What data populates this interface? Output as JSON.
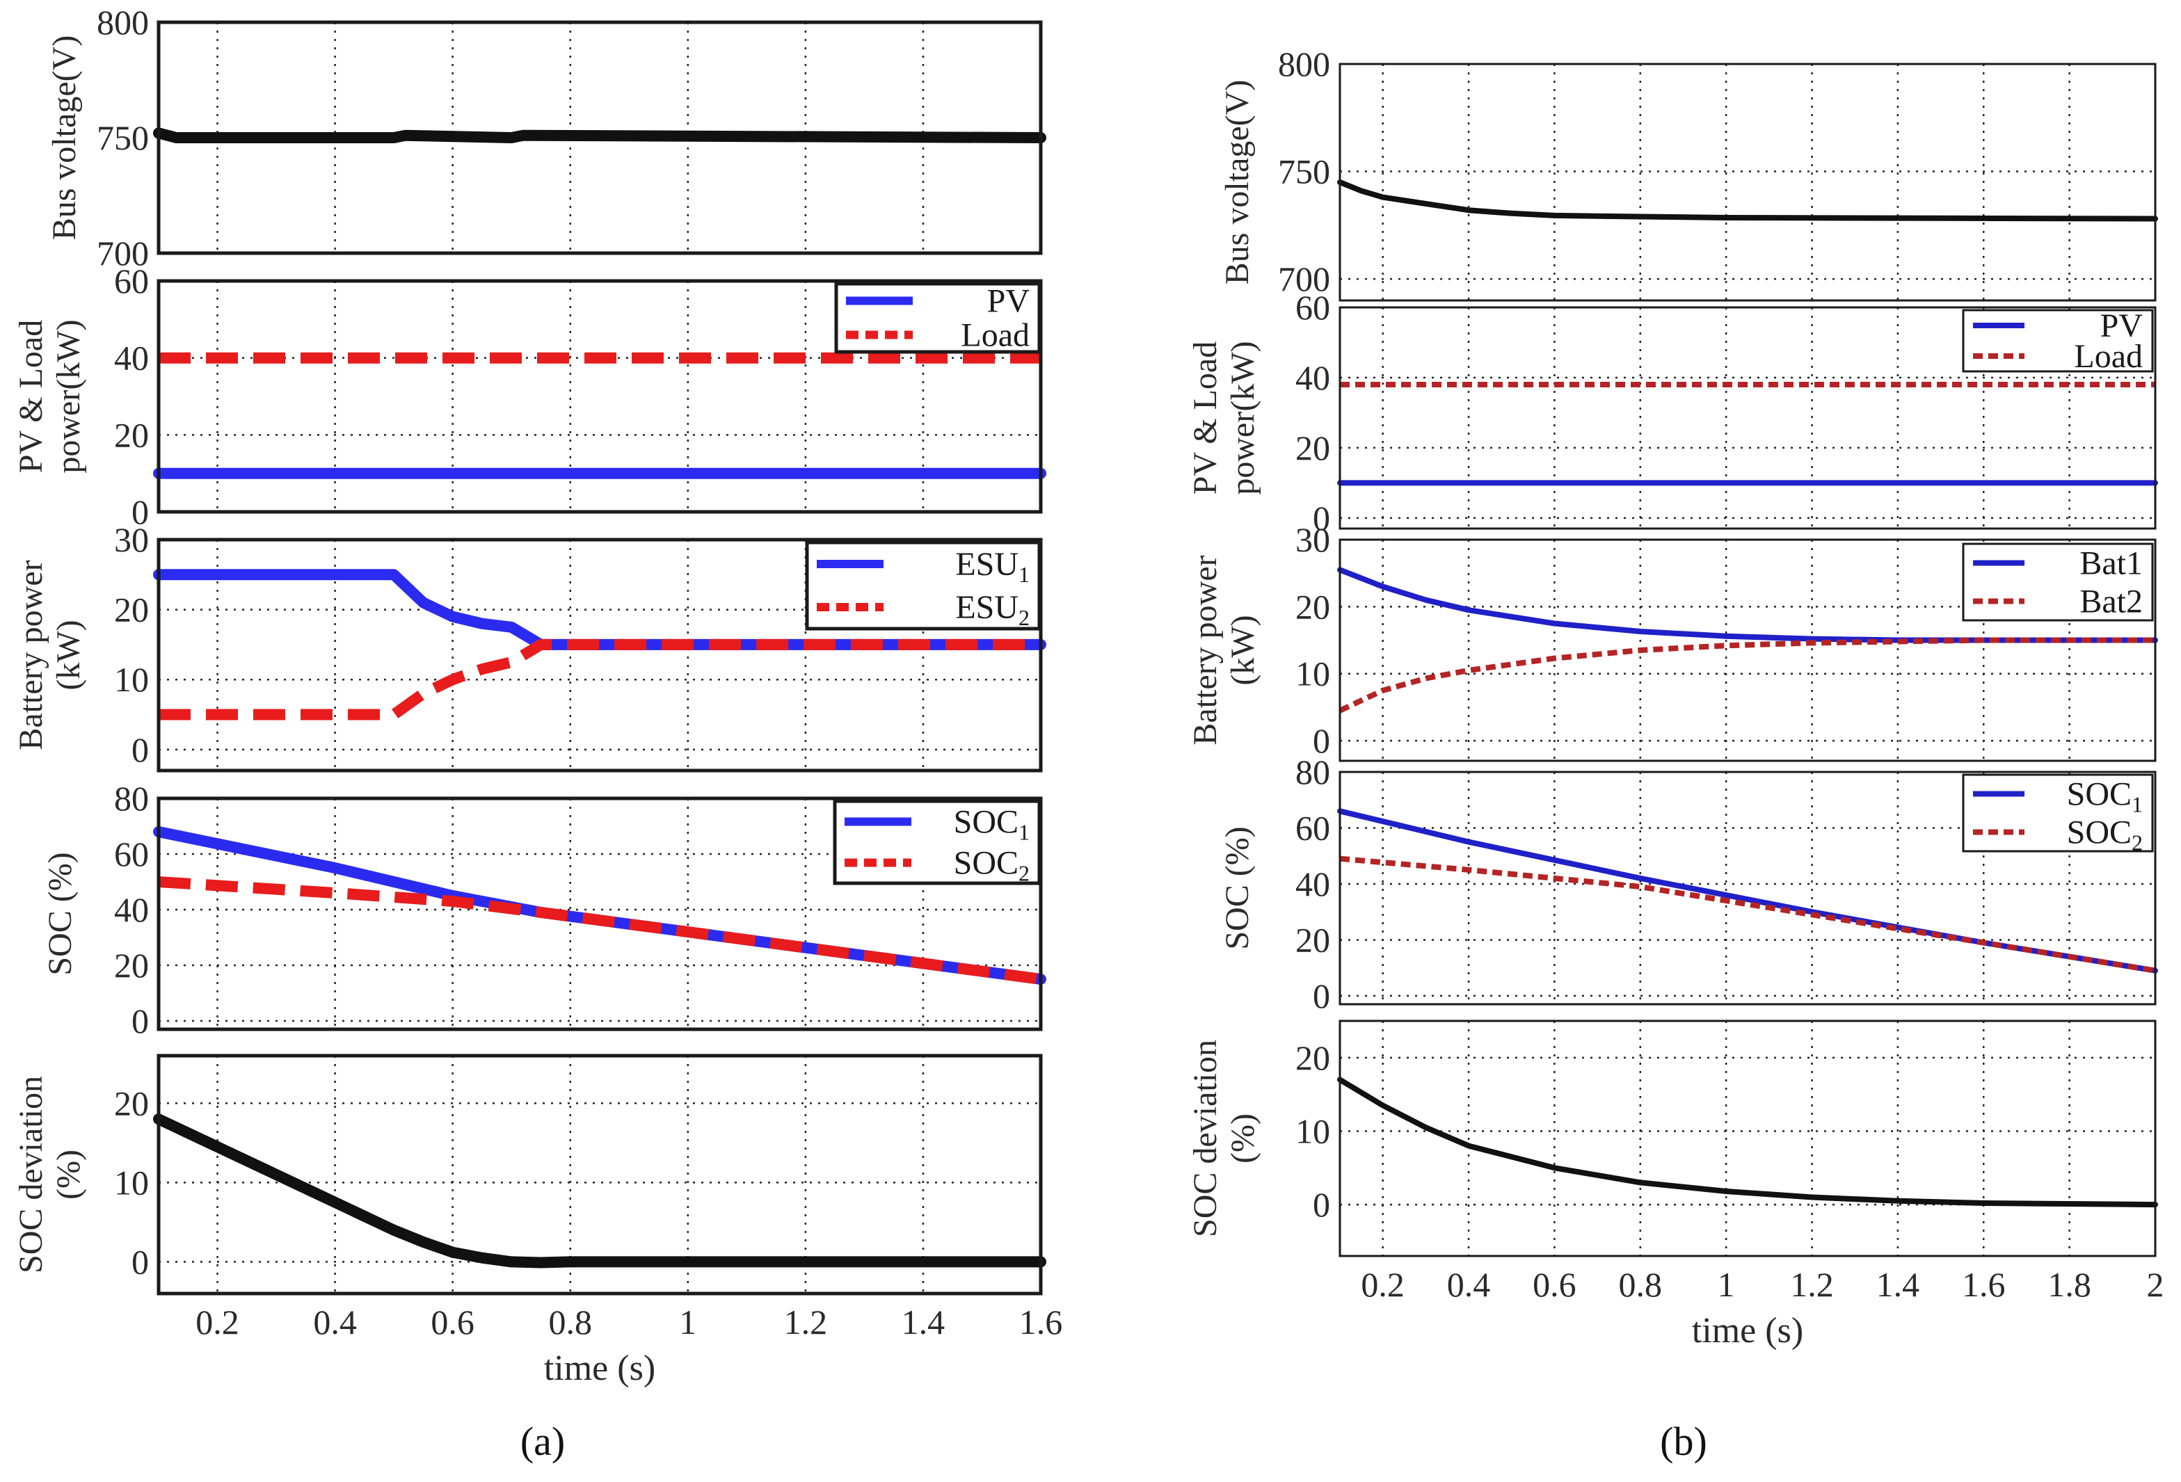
{
  "colors": {
    "blue": "#2b2bf0",
    "red": "#e81c1c",
    "black": "#111111",
    "blue_b": "#2020c8",
    "red_b": "#b52424"
  },
  "panel_labels": [
    "(a)",
    "(b)"
  ],
  "chart_data": [
    {
      "type": "line",
      "title": "Bus voltage — panel (a)",
      "ylabel": "Bus voltage(V)",
      "xlabel": "",
      "xlim": [
        0.1,
        1.6
      ],
      "ylim": [
        700,
        800
      ],
      "xticks": [
        0.2,
        0.4,
        0.6,
        0.8,
        1,
        1.2,
        1.4,
        1.6
      ],
      "yticks": [
        700,
        750,
        800
      ],
      "ytick_labels": [
        "700",
        "750",
        "800"
      ],
      "grid": true,
      "series": [
        {
          "name": "Bus voltage",
          "color": "#111111",
          "x": [
            0.1,
            0.13,
            0.2,
            0.5,
            0.52,
            0.7,
            0.72,
            1.6
          ],
          "y": [
            752,
            750,
            750,
            750,
            751,
            750,
            751,
            750
          ]
        }
      ]
    },
    {
      "type": "line",
      "title": "PV & Load power — panel (a)",
      "ylabel": [
        "PV & Load",
        "power(kW)"
      ],
      "xlabel": "",
      "xlim": [
        0.1,
        1.6
      ],
      "ylim": [
        0,
        60
      ],
      "xticks": [
        0.2,
        0.4,
        0.6,
        0.8,
        1,
        1.2,
        1.4,
        1.6
      ],
      "yticks": [
        0,
        20,
        40,
        60
      ],
      "ytick_labels": [
        "0",
        "20",
        "40",
        "60"
      ],
      "grid": true,
      "legend": {
        "position": "top-right"
      },
      "series": [
        {
          "name": "PV",
          "legend_text": "PV",
          "color": "#2b2bf0",
          "dash": "solid",
          "x": [
            0.1,
            1.6
          ],
          "y": [
            10,
            10
          ]
        },
        {
          "name": "Load",
          "legend_text": "Load",
          "color": "#e81c1c",
          "dash": "dashed",
          "x": [
            0.1,
            1.6
          ],
          "y": [
            40,
            40
          ]
        }
      ]
    },
    {
      "type": "line",
      "title": "Battery power — panel (a)",
      "ylabel": [
        "Battery power",
        "(kW)"
      ],
      "xlabel": "",
      "xlim": [
        0.1,
        1.6
      ],
      "ylim": [
        -3,
        30
      ],
      "xticks": [
        0.2,
        0.4,
        0.6,
        0.8,
        1,
        1.2,
        1.4,
        1.6
      ],
      "yticks": [
        0,
        10,
        20,
        30
      ],
      "ytick_labels": [
        "0",
        "10",
        "20",
        "30"
      ],
      "grid": true,
      "legend": {
        "position": "top-right"
      },
      "series": [
        {
          "name": "ESU1",
          "legend_text": "ESU",
          "legend_sub": "1",
          "color": "#2b2bf0",
          "dash": "solid",
          "x": [
            0.1,
            0.5,
            0.55,
            0.6,
            0.65,
            0.7,
            0.75,
            0.8,
            1.6
          ],
          "y": [
            25,
            25,
            21,
            19,
            18,
            17.5,
            15,
            15,
            15
          ]
        },
        {
          "name": "ESU2",
          "legend_text": "ESU",
          "legend_sub": "2",
          "color": "#e81c1c",
          "dash": "dashed",
          "x": [
            0.1,
            0.5,
            0.55,
            0.6,
            0.65,
            0.7,
            0.75,
            0.8,
            1.6
          ],
          "y": [
            5,
            5,
            8,
            10,
            11.5,
            12.5,
            15,
            15,
            15
          ]
        }
      ]
    },
    {
      "type": "line",
      "title": "SOC — panel (a)",
      "ylabel": "SOC (%)",
      "xlabel": "",
      "xlim": [
        0.1,
        1.6
      ],
      "ylim": [
        -3,
        80
      ],
      "xticks": [
        0.2,
        0.4,
        0.6,
        0.8,
        1,
        1.2,
        1.4,
        1.6
      ],
      "yticks": [
        0,
        20,
        40,
        60,
        80
      ],
      "ytick_labels": [
        "0",
        "20",
        "40",
        "60",
        "80"
      ],
      "grid": true,
      "legend": {
        "position": "top-right"
      },
      "series": [
        {
          "name": "SOC1",
          "legend_text": "SOC",
          "legend_sub": "1",
          "color": "#2b2bf0",
          "dash": "solid",
          "x": [
            0.1,
            0.4,
            0.6,
            0.75,
            1.0,
            1.6
          ],
          "y": [
            68,
            55,
            45,
            39,
            32,
            15
          ]
        },
        {
          "name": "SOC2",
          "legend_text": "SOC",
          "legend_sub": "2",
          "color": "#e81c1c",
          "dash": "dashed",
          "x": [
            0.1,
            0.4,
            0.6,
            0.75,
            1.0,
            1.6
          ],
          "y": [
            50,
            46,
            43,
            39,
            32,
            15
          ]
        }
      ]
    },
    {
      "type": "line",
      "title": "SOC deviation — panel (a)",
      "ylabel": [
        "SOC deviation",
        "(%)"
      ],
      "xlabel": "time (s)",
      "xlim": [
        0.1,
        1.6
      ],
      "ylim": [
        -4,
        26
      ],
      "xticks": [
        0.2,
        0.4,
        0.6,
        0.8,
        1,
        1.2,
        1.4,
        1.6
      ],
      "xtick_labels": [
        "0.2",
        "0.4",
        "0.6",
        "0.8",
        "1",
        "1.2",
        "1.4",
        "1.6"
      ],
      "yticks": [
        0,
        10,
        20
      ],
      "ytick_labels": [
        "0",
        "10",
        "20"
      ],
      "grid": true,
      "series": [
        {
          "name": "SOC deviation",
          "color": "#111111",
          "x": [
            0.1,
            0.3,
            0.5,
            0.55,
            0.6,
            0.65,
            0.7,
            0.75,
            0.8,
            1.6
          ],
          "y": [
            18,
            11,
            4,
            2.5,
            1.2,
            0.5,
            0,
            -0.1,
            0,
            0
          ]
        }
      ]
    },
    {
      "type": "line",
      "title": "Bus voltage — panel (b)",
      "ylabel": "Bus voltage(V)",
      "xlabel": "",
      "xlim": [
        0.1,
        2.0
      ],
      "ylim": [
        690,
        800
      ],
      "xticks": [
        0.2,
        0.4,
        0.6,
        0.8,
        1,
        1.2,
        1.4,
        1.6,
        1.8,
        2
      ],
      "yticks": [
        700,
        750,
        800
      ],
      "ytick_labels": [
        "700",
        "750",
        "800"
      ],
      "grid": true,
      "series": [
        {
          "name": "Bus voltage",
          "color": "#111111",
          "x": [
            0.1,
            0.15,
            0.2,
            0.3,
            0.4,
            0.5,
            0.6,
            0.8,
            1.0,
            2.0
          ],
          "y": [
            745,
            741,
            738,
            735,
            732,
            730.5,
            729.5,
            729,
            728.5,
            728
          ]
        }
      ]
    },
    {
      "type": "line",
      "title": "PV & Load power — panel (b)",
      "ylabel": [
        "PV & Load",
        "power(kW)"
      ],
      "xlabel": "",
      "xlim": [
        0.1,
        2.0
      ],
      "ylim": [
        -3,
        60
      ],
      "xticks": [
        0.2,
        0.4,
        0.6,
        0.8,
        1,
        1.2,
        1.4,
        1.6,
        1.8,
        2
      ],
      "yticks": [
        0,
        20,
        40,
        60
      ],
      "ytick_labels": [
        "0",
        "20",
        "40",
        "60"
      ],
      "grid": true,
      "legend": {
        "position": "top-right"
      },
      "series": [
        {
          "name": "PV",
          "legend_text": "PV",
          "color": "#2020c8",
          "dash": "solid",
          "x": [
            0.1,
            2.0
          ],
          "y": [
            10,
            10
          ]
        },
        {
          "name": "Load",
          "legend_text": "Load",
          "color": "#b52424",
          "dash": "dashed",
          "x": [
            0.1,
            2.0
          ],
          "y": [
            38,
            38
          ]
        }
      ]
    },
    {
      "type": "line",
      "title": "Battery power — panel (b)",
      "ylabel": [
        "Battery power",
        "(kW)"
      ],
      "xlabel": "",
      "xlim": [
        0.1,
        2.0
      ],
      "ylim": [
        -3,
        30
      ],
      "xticks": [
        0.2,
        0.4,
        0.6,
        0.8,
        1,
        1.2,
        1.4,
        1.6,
        1.8,
        2
      ],
      "yticks": [
        0,
        10,
        20,
        30
      ],
      "ytick_labels": [
        "0",
        "10",
        "20",
        "30"
      ],
      "grid": true,
      "legend": {
        "position": "top-right"
      },
      "series": [
        {
          "name": "Bat1",
          "legend_text": "Bat1",
          "color": "#2020c8",
          "dash": "solid",
          "x": [
            0.1,
            0.2,
            0.3,
            0.4,
            0.6,
            0.8,
            1.0,
            1.2,
            1.4,
            1.6,
            2.0
          ],
          "y": [
            25.5,
            23,
            21,
            19.5,
            17.5,
            16.3,
            15.6,
            15.2,
            15,
            15,
            15
          ]
        },
        {
          "name": "Bat2",
          "legend_text": "Bat2",
          "color": "#b52424",
          "dash": "dashed",
          "x": [
            0.1,
            0.2,
            0.3,
            0.4,
            0.6,
            0.8,
            1.0,
            1.2,
            1.4,
            1.6,
            2.0
          ],
          "y": [
            4.5,
            7.5,
            9.3,
            10.5,
            12.3,
            13.5,
            14.2,
            14.6,
            14.8,
            15,
            15
          ]
        }
      ]
    },
    {
      "type": "line",
      "title": "SOC — panel (b)",
      "ylabel": "SOC (%)",
      "xlabel": "",
      "xlim": [
        0.1,
        2.0
      ],
      "ylim": [
        -3,
        80
      ],
      "xticks": [
        0.2,
        0.4,
        0.6,
        0.8,
        1,
        1.2,
        1.4,
        1.6,
        1.8,
        2
      ],
      "yticks": [
        0,
        20,
        40,
        60,
        80
      ],
      "ytick_labels": [
        "0",
        "20",
        "40",
        "60",
        "80"
      ],
      "grid": true,
      "legend": {
        "position": "top-right"
      },
      "series": [
        {
          "name": "SOC1",
          "legend_text": "SOC",
          "legend_sub": "1",
          "color": "#2020c8",
          "dash": "solid",
          "x": [
            0.1,
            0.4,
            0.8,
            1.2,
            1.6,
            2.0
          ],
          "y": [
            66,
            55,
            42,
            30,
            19,
            9
          ]
        },
        {
          "name": "SOC2",
          "legend_text": "SOC",
          "legend_sub": "2",
          "color": "#b52424",
          "dash": "dashed",
          "x": [
            0.1,
            0.4,
            0.8,
            1.2,
            1.6,
            2.0
          ],
          "y": [
            49,
            45,
            39,
            29,
            19,
            9
          ]
        }
      ]
    },
    {
      "type": "line",
      "title": "SOC deviation — panel (b)",
      "ylabel": [
        "SOC deviation",
        "(%)"
      ],
      "xlabel": "time (s)",
      "xlim": [
        0.1,
        2.0
      ],
      "ylim": [
        -7,
        25
      ],
      "xticks": [
        0.2,
        0.4,
        0.6,
        0.8,
        1,
        1.2,
        1.4,
        1.6,
        1.8,
        2
      ],
      "xtick_labels": [
        "0.2",
        "0.4",
        "0.6",
        "0.8",
        "1",
        "1.2",
        "1.4",
        "1.6",
        "1.8",
        "2"
      ],
      "yticks": [
        0,
        10,
        20
      ],
      "ytick_labels": [
        "0",
        "10",
        "20"
      ],
      "grid": true,
      "series": [
        {
          "name": "SOC deviation",
          "color": "#111111",
          "x": [
            0.1,
            0.2,
            0.3,
            0.4,
            0.6,
            0.8,
            1.0,
            1.2,
            1.4,
            1.6,
            2.0
          ],
          "y": [
            17,
            13.5,
            10.5,
            8,
            5,
            3,
            1.8,
            1,
            0.5,
            0.2,
            0
          ]
        }
      ]
    }
  ]
}
